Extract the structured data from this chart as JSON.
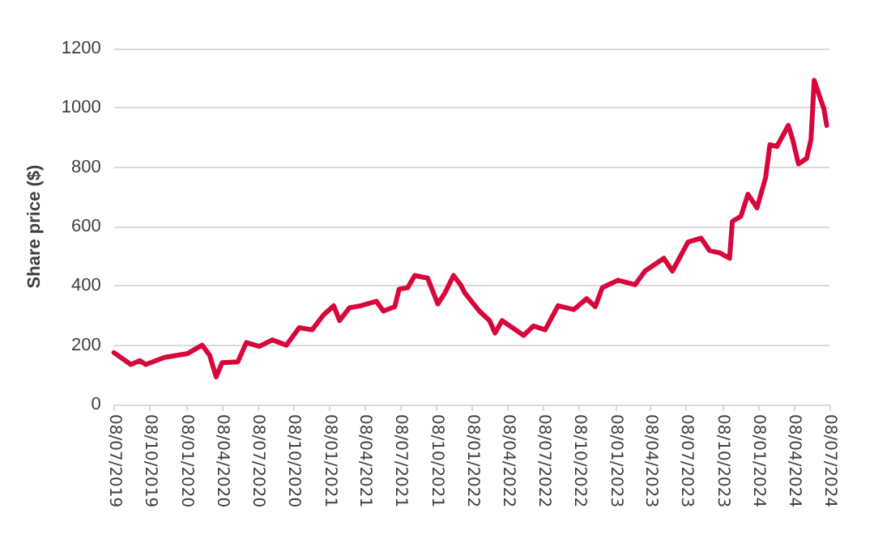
{
  "chart_data": {
    "type": "line",
    "ylabel": "Share price ($)",
    "x": [
      "2019-07-08",
      "2019-08-20",
      "2019-09-12",
      "2019-09-27",
      "2019-11-14",
      "2020-01-12",
      "2020-02-18",
      "2020-03-08",
      "2020-03-25",
      "2020-04-09",
      "2020-05-19",
      "2020-06-10",
      "2020-07-13",
      "2020-08-15",
      "2020-09-20",
      "2020-10-23",
      "2020-11-25",
      "2020-12-24",
      "2021-01-19",
      "2021-02-03",
      "2021-02-28",
      "2021-03-29",
      "2021-05-08",
      "2021-05-26",
      "2021-06-24",
      "2021-07-05",
      "2021-07-27",
      "2021-08-14",
      "2021-09-16",
      "2021-10-12",
      "2021-10-30",
      "2021-11-21",
      "2021-12-09",
      "2021-12-20",
      "2022-01-26",
      "2022-02-21",
      "2022-03-07",
      "2022-03-25",
      "2022-05-19",
      "2022-06-13",
      "2022-07-13",
      "2022-08-15",
      "2022-09-24",
      "2022-10-27",
      "2022-11-18",
      "2022-12-06",
      "2023-01-15",
      "2023-02-28",
      "2023-03-25",
      "2023-05-12",
      "2023-06-03",
      "2023-07-13",
      "2023-08-15",
      "2023-09-06",
      "2023-10-02",
      "2023-10-27",
      "2023-11-03",
      "2023-11-25",
      "2023-12-13",
      "2024-01-05",
      "2024-01-27",
      "2024-02-07",
      "2024-02-25",
      "2024-03-25",
      "2024-04-05",
      "2024-04-20",
      "2024-05-11",
      "2024-05-22",
      "2024-05-30",
      "2024-06-24",
      "2024-07-01"
    ],
    "series": [
      {
        "color": "#d7063b",
        "values": [
          175,
          135,
          148,
          135,
          159,
          172,
          200,
          167,
          93,
          141,
          144,
          209,
          196,
          218,
          200,
          259,
          252,
          302,
          333,
          283,
          326,
          333,
          348,
          315,
          330,
          389,
          394,
          435,
          426,
          339,
          376,
          435,
          404,
          376,
          315,
          283,
          241,
          283,
          233,
          265,
          252,
          333,
          320,
          357,
          330,
          394,
          419,
          404,
          450,
          493,
          450,
          548,
          561,
          519,
          511,
          493,
          617,
          635,
          709,
          663,
          765,
          876,
          870,
          941,
          894,
          811,
          830,
          894,
          1093,
          996,
          941
        ]
      }
    ],
    "xlim": [
      "2019-07-08",
      "2024-07-08"
    ],
    "xticks": [
      {
        "value": "2019-07-08",
        "label": "08/07/2019"
      },
      {
        "value": "2019-10-08",
        "label": "08/10/2019"
      },
      {
        "value": "2020-01-08",
        "label": "08/01/2020"
      },
      {
        "value": "2020-04-08",
        "label": "08/04/2020"
      },
      {
        "value": "2020-07-08",
        "label": "08/07/2020"
      },
      {
        "value": "2020-10-08",
        "label": "08/10/2020"
      },
      {
        "value": "2021-01-08",
        "label": "08/01/2021"
      },
      {
        "value": "2021-04-08",
        "label": "08/04/2021"
      },
      {
        "value": "2021-07-08",
        "label": "08/07/2021"
      },
      {
        "value": "2021-10-08",
        "label": "08/10/2021"
      },
      {
        "value": "2022-01-08",
        "label": "08/01/2022"
      },
      {
        "value": "2022-04-08",
        "label": "08/04/2022"
      },
      {
        "value": "2022-07-08",
        "label": "08/07/2022"
      },
      {
        "value": "2022-10-08",
        "label": "08/10/2022"
      },
      {
        "value": "2023-01-08",
        "label": "08/01/2023"
      },
      {
        "value": "2023-04-08",
        "label": "08/04/2023"
      },
      {
        "value": "2023-07-08",
        "label": "08/07/2023"
      },
      {
        "value": "2023-10-08",
        "label": "08/10/2023"
      },
      {
        "value": "2024-01-08",
        "label": "08/01/2024"
      },
      {
        "value": "2024-04-08",
        "label": "08/04/2024"
      },
      {
        "value": "2024-07-08",
        "label": "08/07/2024"
      }
    ],
    "ylim": [
      0,
      1200
    ],
    "yticks": [
      0,
      200,
      400,
      600,
      800,
      1000,
      1200
    ],
    "grid": "y",
    "marker": "none",
    "line_style": "solid"
  }
}
